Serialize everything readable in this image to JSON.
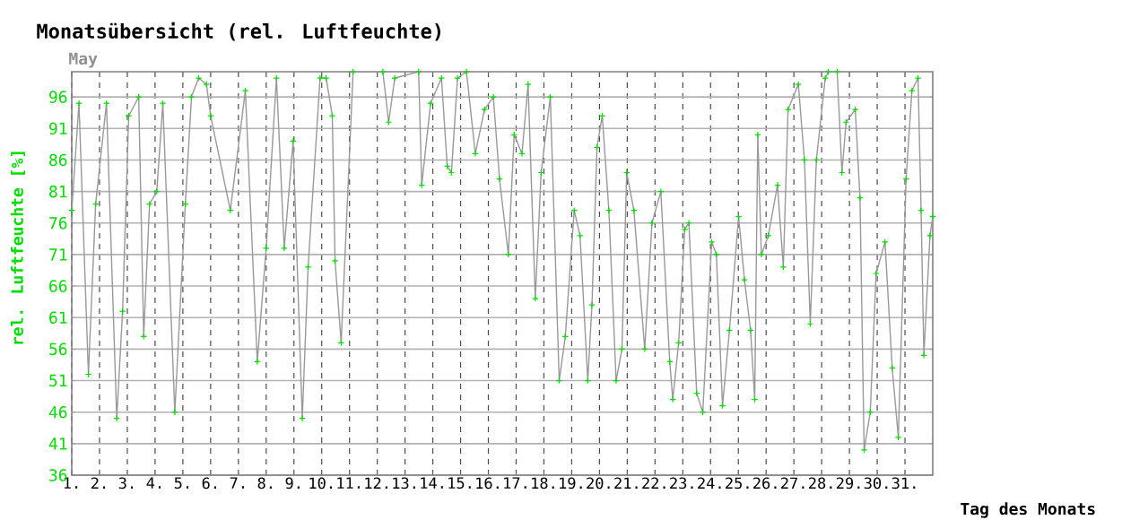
{
  "chart_data": {
    "type": "line",
    "title": "Monatsübersicht (rel. Luftfeuchte)",
    "xlabel": "Tag des Monats",
    "ylabel": "rel. Luftfeuchte [%]",
    "annotations": [
      "May"
    ],
    "xlim": [
      1,
      32
    ],
    "ylim": [
      36,
      100
    ],
    "xticks": [
      {
        "value": 1,
        "label": "1."
      },
      {
        "value": 2,
        "label": "2."
      },
      {
        "value": 3,
        "label": "3."
      },
      {
        "value": 4,
        "label": "4."
      },
      {
        "value": 5,
        "label": "5."
      },
      {
        "value": 6,
        "label": "6."
      },
      {
        "value": 7,
        "label": "7."
      },
      {
        "value": 8,
        "label": "8."
      },
      {
        "value": 9,
        "label": "9."
      },
      {
        "value": 10,
        "label": "10."
      },
      {
        "value": 11,
        "label": "11."
      },
      {
        "value": 12,
        "label": "12."
      },
      {
        "value": 13,
        "label": "13."
      },
      {
        "value": 14,
        "label": "14."
      },
      {
        "value": 15,
        "label": "15."
      },
      {
        "value": 16,
        "label": "16."
      },
      {
        "value": 17,
        "label": "17."
      },
      {
        "value": 18,
        "label": "18."
      },
      {
        "value": 19,
        "label": "19."
      },
      {
        "value": 20,
        "label": "20."
      },
      {
        "value": 21,
        "label": "21."
      },
      {
        "value": 22,
        "label": "22."
      },
      {
        "value": 23,
        "label": "23."
      },
      {
        "value": 24,
        "label": "24."
      },
      {
        "value": 25,
        "label": "25."
      },
      {
        "value": 26,
        "label": "26."
      },
      {
        "value": 27,
        "label": "27."
      },
      {
        "value": 28,
        "label": "28."
      },
      {
        "value": 29,
        "label": "29."
      },
      {
        "value": 30,
        "label": "30."
      },
      {
        "value": 31,
        "label": "31."
      }
    ],
    "yticks": [
      36,
      41,
      46,
      51,
      56,
      61,
      66,
      71,
      76,
      81,
      86,
      91,
      96
    ],
    "grid": true,
    "marker": "cross",
    "line_style": "solid",
    "series": [
      {
        "color": "#999999",
        "x": [
          1.0,
          1.26,
          1.6,
          1.86,
          2.25,
          2.62,
          2.83,
          3.05,
          3.41,
          3.59,
          3.8,
          4.06,
          4.28,
          4.71,
          5.09,
          5.31,
          5.57,
          5.85,
          6.0,
          6.71,
          7.25,
          7.68,
          8.0,
          8.37,
          8.65,
          8.97,
          9.3,
          9.51,
          9.94,
          10.16,
          10.38,
          10.48,
          10.7,
          11.13,
          12.2,
          12.41,
          12.63,
          13.49,
          13.6,
          13.92,
          14.31,
          14.52,
          14.67,
          14.89,
          15.21,
          15.53,
          15.86,
          16.18,
          16.4,
          16.72,
          16.93,
          17.21,
          17.43,
          17.69,
          17.9,
          18.23,
          18.55,
          18.77,
          19.09,
          19.3,
          19.58,
          19.73,
          19.91,
          20.1,
          20.34,
          20.6,
          20.81,
          20.98,
          21.24,
          21.63,
          21.89,
          22.21,
          22.53,
          22.64,
          22.85,
          23.07,
          23.22,
          23.5,
          23.72,
          24.04,
          24.21,
          24.43,
          24.68,
          25.01,
          25.22,
          25.44,
          25.59,
          25.7,
          25.83,
          26.08,
          26.41,
          26.62,
          26.79,
          27.16,
          27.38,
          27.59,
          27.81,
          28.13,
          28.24,
          28.56,
          28.73,
          28.88,
          29.21,
          29.38,
          29.53,
          29.75,
          29.96,
          30.28,
          30.54,
          30.76,
          31.04,
          31.25,
          31.47,
          31.58,
          31.68,
          31.9,
          32.0
        ],
        "values": [
          78,
          95,
          52,
          79,
          95,
          45,
          62,
          93,
          96,
          58,
          79,
          81,
          95,
          46,
          79,
          96,
          99,
          98,
          93,
          78,
          97,
          54,
          72,
          99,
          72,
          89,
          45,
          69,
          99,
          99,
          93,
          70,
          57,
          100,
          100,
          92,
          99,
          100,
          82,
          95,
          99,
          85,
          84,
          99,
          100,
          87,
          94,
          96,
          83,
          71,
          90,
          87,
          98,
          64,
          84,
          96,
          51,
          58,
          78,
          74,
          51,
          63,
          88,
          93,
          78,
          51,
          56,
          84,
          78,
          56,
          76,
          81,
          54,
          48,
          57,
          75,
          76,
          49,
          46,
          73,
          71,
          47,
          59,
          77,
          67,
          59,
          48,
          90,
          71,
          74,
          82,
          69,
          94,
          98,
          86,
          60,
          86,
          99,
          100,
          100,
          84,
          92,
          94,
          80,
          40,
          46,
          68,
          73,
          53,
          42,
          83,
          97,
          99,
          78,
          55,
          74,
          77
        ]
      }
    ]
  }
}
